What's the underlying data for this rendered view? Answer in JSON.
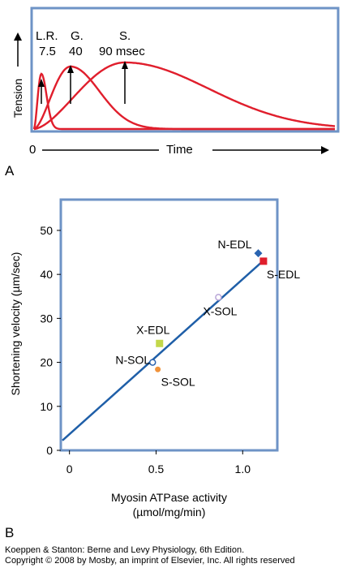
{
  "panel_a": {
    "letter": "A",
    "ylabel": "Tension",
    "xlabel": "Time",
    "x_origin_label": "0",
    "annotations": [
      {
        "line1": "L.R.",
        "line2": "7.5"
      },
      {
        "line1": "G.",
        "line2": "40"
      },
      {
        "line1": "S.",
        "line2": "90 msec"
      }
    ],
    "colors": {
      "frame": "#6e93c6",
      "curve": "#e01e2c"
    }
  },
  "panel_b": {
    "letter": "B",
    "colors": {
      "frame": "#6e93c6",
      "line": "#1f5fa8"
    }
  },
  "chart_data": [
    {
      "type": "line",
      "title": "",
      "xlabel": "Time",
      "ylabel": "Tension",
      "series": [
        {
          "name": "L.R.",
          "peak_time_label": "7.5",
          "relative_peak_time": 0.075
        },
        {
          "name": "G.",
          "peak_time_label": "40",
          "relative_peak_time": 0.4
        },
        {
          "name": "S.",
          "peak_time_label": "90 msec",
          "relative_peak_time": 0.9
        }
      ],
      "x_tick_labels": [
        "0"
      ]
    },
    {
      "type": "scatter",
      "title": "",
      "xlabel_line1": "Myosin ATPase activity",
      "xlabel_line2": "(µmol/mg/min)",
      "ylabel": "Shortening velocity (µm/sec)",
      "xlim": [
        -0.05,
        1.2
      ],
      "ylim": [
        0,
        57
      ],
      "x_ticks": [
        0,
        0.5,
        1.0
      ],
      "x_tick_labels": [
        "0",
        "0.5",
        "1.0"
      ],
      "y_ticks": [
        0,
        10,
        20,
        30,
        40,
        50
      ],
      "y_tick_labels": [
        "0",
        "10",
        "20",
        "30",
        "40",
        "50"
      ],
      "points": [
        {
          "label": "N-EDL",
          "x": 1.09,
          "y": 44.8,
          "marker": "diamond",
          "color": "#2a63b0",
          "label_pos": "left"
        },
        {
          "label": "S-EDL",
          "x": 1.12,
          "y": 43.0,
          "marker": "square",
          "color": "#e01e2c",
          "label_pos": "below-right"
        },
        {
          "label": "X-SOL",
          "x": 0.86,
          "y": 34.8,
          "marker": "circle-open",
          "color": "#b9a6d8",
          "label_pos": "below"
        },
        {
          "label": "X-EDL",
          "x": 0.52,
          "y": 24.3,
          "marker": "square",
          "color": "#c3d84a",
          "label_pos": "above"
        },
        {
          "label": "N-SOL",
          "x": 0.48,
          "y": 20.0,
          "marker": "circle-open",
          "color": "#2a63b0",
          "label_pos": "left"
        },
        {
          "label": "S-SOL",
          "x": 0.51,
          "y": 18.4,
          "marker": "circle",
          "color": "#f0923a",
          "label_pos": "below-right"
        }
      ],
      "regression_line": {
        "x": [
          -0.05,
          1.13
        ],
        "y": [
          1.5,
          43.5
        ]
      }
    }
  ],
  "footer": {
    "line1": "Koeppen & Stanton: Berne and Levy Physiology, 6th Edition.",
    "line2": "Copyright © 2008 by Mosby, an imprint of Elsevier, Inc. All rights reserved"
  }
}
